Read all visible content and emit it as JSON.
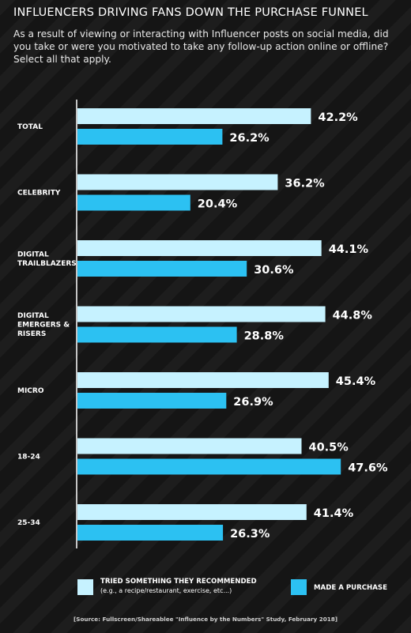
{
  "chart_data": {
    "type": "bar",
    "orientation": "horizontal",
    "title": "INFLUENCERS DRIVING FANS DOWN THE PURCHASE FUNNEL",
    "subtitle": "As a result of viewing or interacting with Influencer posts on social media, did you take or were you motivated to take any follow-up action online or offline? Select all that apply.",
    "categories": [
      [
        "TOTAL"
      ],
      [
        "CELEBRITY"
      ],
      [
        "DIGITAL",
        "TRAILBLAZERS"
      ],
      [
        "DIGITAL",
        "EMERGERS &",
        "RISERS"
      ],
      [
        "MICRO"
      ],
      [
        "18-24"
      ],
      [
        "25-34"
      ]
    ],
    "series": [
      {
        "name": "TRIED SOMETHING THEY RECOMMENDED",
        "name_note": "(e.g., a recipe/restaurant, exercise, etc...)",
        "color": "#c6f2ff",
        "values": [
          42.2,
          36.2,
          44.1,
          44.8,
          45.4,
          40.5,
          41.4
        ],
        "labels": [
          "42.2%",
          "36.2%",
          "44.1%",
          "44.8%",
          "45.4%",
          "40.5%",
          "41.4%"
        ]
      },
      {
        "name": "MADE A PURCHASE",
        "color": "#2cc1f2",
        "values": [
          26.2,
          20.4,
          30.6,
          28.8,
          26.9,
          47.6,
          26.3
        ],
        "labels": [
          "26.2%",
          "20.4%",
          "30.6%",
          "28.8%",
          "26.9%",
          "47.6%",
          "26.3%"
        ]
      }
    ],
    "axis_color": "#ffffff",
    "grid": false,
    "legend_position": "bottom"
  },
  "legend": {
    "tried_line1": "TRIED SOMETHING THEY RECOMMENDED",
    "tried_line2": "(e.g., a recipe/restaurant, exercise, etc...)",
    "purchase": "MADE A PURCHASE"
  },
  "source": "[Source: Fullscreen/Shareablee \"Influence by the Numbers\" Study, February 2018]"
}
